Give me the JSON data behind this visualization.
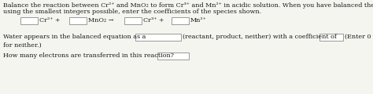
{
  "line1": "Balance the reaction between Cr²⁺ and MnO₂ to form Cr³⁺ and Mn²⁺ in acidic solution. When you have balanced the equation",
  "line2": "using the smallest integers possible, enter the coefficients of the species shown.",
  "line4": "Water appears in the balanced equation as a",
  "line4b": "(reactant, product, neither) with a coefficient of",
  "line4c": "(Enter 0",
  "line5": "for neither.)",
  "line6": "How many electrons are transferred in this reaction?",
  "eq_label1": "Cr²⁺ +",
  "eq_label2": "MnO₂ →",
  "eq_label3": "Cr³⁺ +",
  "eq_label4": "Mn²⁺",
  "bg_color": "#f5f5f0",
  "text_color": "#1a1a1a",
  "box_edge_color": "#999999",
  "font_size": 5.8
}
